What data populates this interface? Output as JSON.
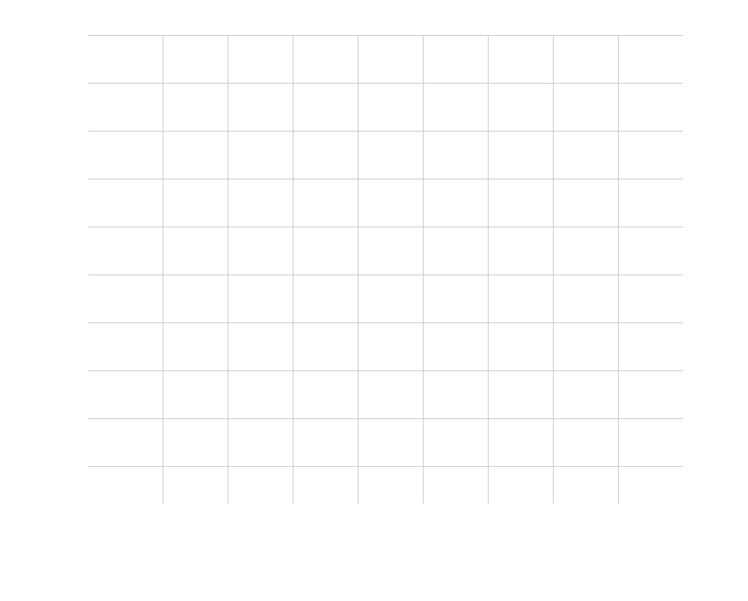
{
  "chart_data": {
    "type": "line",
    "title": "",
    "xlabel": "",
    "ylabel": "",
    "grid": true,
    "series": [],
    "colors": {
      "grid": "#cccccc",
      "background": "#ffffff"
    }
  }
}
